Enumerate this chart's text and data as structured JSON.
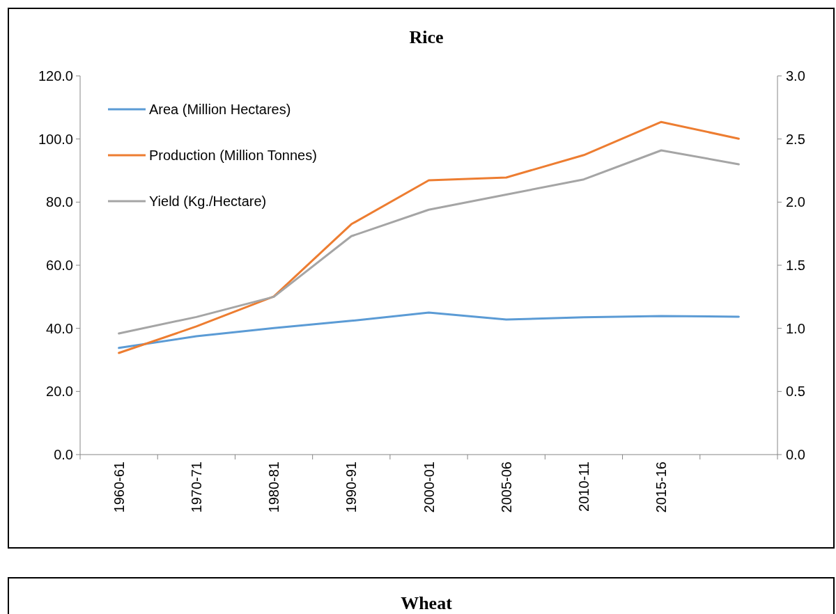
{
  "chart_data": [
    {
      "type": "line",
      "title": "Rice",
      "categories": [
        "1960-61",
        "1970-71",
        "1980-81",
        "1990-91",
        "2000-01",
        "2005-06",
        "2010-11",
        "2015-16",
        null
      ],
      "series": [
        {
          "name": "Area (Million Hectares)",
          "color": "#5b9bd5",
          "values": [
            33.8,
            37.5,
            40.1,
            42.4,
            45.0,
            42.8,
            43.5,
            43.9,
            43.7
          ]
        },
        {
          "name": "Production (Million Tonnes)",
          "color": "#ed7d31",
          "values": [
            32.2,
            40.6,
            50.1,
            73.0,
            86.9,
            87.8,
            94.9,
            105.4,
            100.1
          ]
        },
        {
          "name": "Yield (Kg./Hectare)",
          "color": "#a5a5a5",
          "axis": "y2",
          "values": [
            0.96,
            1.09,
            1.25,
            1.73,
            1.94,
            2.06,
            2.18,
            2.41,
            2.3
          ]
        }
      ],
      "ylim": [
        0,
        120
      ],
      "yticks": [
        {
          "value": 0,
          "label": "0.0"
        },
        {
          "value": 20,
          "label": "20.0"
        },
        {
          "value": 40,
          "label": "40.0"
        },
        {
          "value": 60,
          "label": "60.0"
        },
        {
          "value": 80,
          "label": "80.0"
        },
        {
          "value": 100,
          "label": "100.0"
        },
        {
          "value": 120,
          "label": "120.0"
        }
      ],
      "y2lim": [
        0,
        3
      ],
      "y2ticks": [
        {
          "value": 0,
          "label": "0.0"
        },
        {
          "value": 0.5,
          "label": "0.5"
        },
        {
          "value": 1,
          "label": "1.0"
        },
        {
          "value": 1.5,
          "label": "1.5"
        },
        {
          "value": 2,
          "label": "2.0"
        },
        {
          "value": 2.5,
          "label": "2.5"
        },
        {
          "value": 3,
          "label": "3.0"
        }
      ],
      "legend": "top left",
      "grid": false,
      "marker": "none",
      "line_style": "solid"
    },
    {
      "type": "other",
      "title": "Wheat"
    }
  ]
}
